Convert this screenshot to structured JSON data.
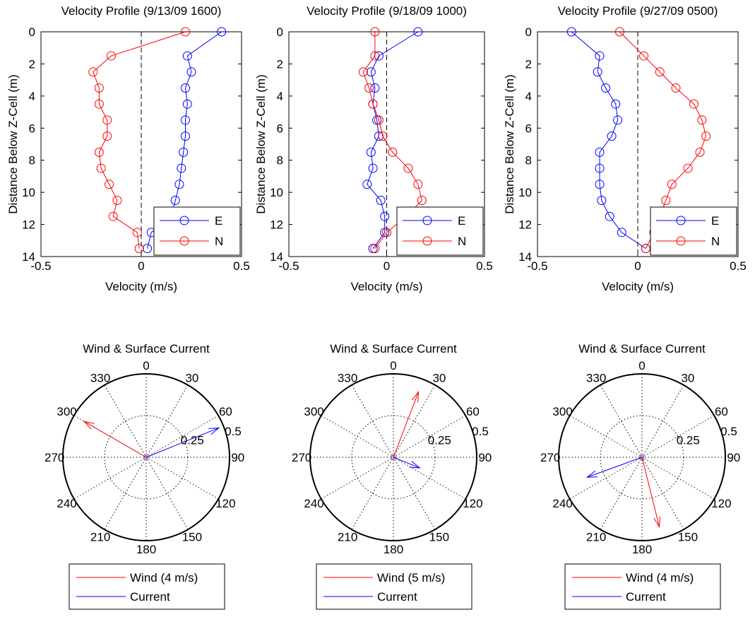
{
  "colors": {
    "east": "#0000ff",
    "north": "#ff0000",
    "wind": "#ff0000",
    "current": "#0000ff",
    "axis": "#000000",
    "zero_line": "#000000"
  },
  "chart_data": [
    {
      "type": "line",
      "title": "Velocity Profile (9/13/09 1600)",
      "xlabel": "Velocity (m/s)",
      "ylabel": "Distance Below Z-Cell (m)",
      "xlim": [
        -0.5,
        0.5
      ],
      "ylim": [
        0,
        14
      ],
      "y_reversed": true,
      "xticks": [
        "-0.5",
        "0",
        "0.5"
      ],
      "yticks": [
        "0",
        "2",
        "4",
        "6",
        "8",
        "10",
        "12",
        "14"
      ],
      "legend": {
        "position": "bottom-right",
        "entries": [
          "E",
          "N"
        ]
      },
      "series": [
        {
          "name": "E",
          "color": "blue",
          "x": [
            0.4,
            0.23,
            0.25,
            0.22,
            0.23,
            0.22,
            0.22,
            0.21,
            0.2,
            0.19,
            0.17,
            0.15,
            0.05,
            0.03
          ],
          "y": [
            0,
            1.5,
            2.5,
            3.5,
            4.5,
            5.5,
            6.5,
            7.5,
            8.5,
            9.5,
            10.5,
            11.5,
            12.5,
            13.5
          ]
        },
        {
          "name": "N",
          "color": "red",
          "x": [
            0.22,
            -0.15,
            -0.24,
            -0.21,
            -0.21,
            -0.17,
            -0.17,
            -0.21,
            -0.2,
            -0.16,
            -0.12,
            -0.14,
            -0.02,
            -0.01
          ],
          "y": [
            0,
            1.5,
            2.5,
            3.5,
            4.5,
            5.5,
            6.5,
            7.5,
            8.5,
            9.5,
            10.5,
            11.5,
            12.5,
            13.5
          ]
        }
      ]
    },
    {
      "type": "line",
      "title": "Velocity Profile (9/18/09 1000)",
      "xlabel": "Velocity (m/s)",
      "ylabel": "Distance Below Z-Cell (m)",
      "xlim": [
        -0.5,
        0.5
      ],
      "ylim": [
        0,
        14
      ],
      "y_reversed": true,
      "xticks": [
        "-0.5",
        "0",
        "0.5"
      ],
      "yticks": [
        "0",
        "2",
        "4",
        "6",
        "8",
        "10",
        "12",
        "14"
      ],
      "legend": {
        "position": "bottom-right",
        "entries": [
          "E",
          "N"
        ]
      },
      "series": [
        {
          "name": "E",
          "color": "blue",
          "x": [
            0.16,
            -0.04,
            -0.08,
            -0.06,
            -0.07,
            -0.05,
            -0.04,
            -0.08,
            -0.07,
            -0.1,
            -0.03,
            -0.01,
            -0.01,
            -0.07
          ],
          "y": [
            0,
            1.5,
            2.5,
            3.5,
            4.5,
            5.5,
            6.5,
            7.5,
            8.5,
            9.5,
            10.5,
            11.5,
            12.5,
            13.5
          ]
        },
        {
          "name": "N",
          "color": "red",
          "x": [
            -0.06,
            -0.06,
            -0.12,
            -0.09,
            -0.07,
            -0.04,
            -0.02,
            0.03,
            0.11,
            0.16,
            0.18,
            0.1,
            0.0,
            -0.06
          ],
          "y": [
            0,
            1.5,
            2.5,
            3.5,
            4.5,
            5.5,
            6.5,
            7.5,
            8.5,
            9.5,
            10.5,
            11.5,
            12.5,
            13.5
          ]
        }
      ]
    },
    {
      "type": "line",
      "title": "Velocity Profile (9/27/09 0500)",
      "xlabel": "Velocity (m/s)",
      "ylabel": "Distance Below Z-Cell (m)",
      "xlim": [
        -0.5,
        0.5
      ],
      "ylim": [
        0,
        14
      ],
      "y_reversed": true,
      "xticks": [
        "-0.5",
        "0",
        "0.5"
      ],
      "yticks": [
        "0",
        "2",
        "4",
        "6",
        "8",
        "10",
        "12",
        "14"
      ],
      "legend": {
        "position": "bottom-right",
        "entries": [
          "E",
          "N"
        ]
      },
      "series": [
        {
          "name": "E",
          "color": "blue",
          "x": [
            -0.33,
            -0.19,
            -0.2,
            -0.16,
            -0.11,
            -0.1,
            -0.13,
            -0.19,
            -0.19,
            -0.19,
            -0.18,
            -0.14,
            -0.08,
            0.04
          ],
          "y": [
            0,
            1.5,
            2.5,
            3.5,
            4.5,
            5.5,
            6.5,
            7.5,
            8.5,
            9.5,
            10.5,
            11.5,
            12.5,
            13.5
          ]
        },
        {
          "name": "N",
          "color": "red",
          "x": [
            -0.09,
            0.03,
            0.11,
            0.19,
            0.28,
            0.32,
            0.34,
            0.31,
            0.25,
            0.17,
            0.14,
            0.11,
            0.08,
            0.04
          ],
          "y": [
            0,
            1.5,
            2.5,
            3.5,
            4.5,
            5.5,
            6.5,
            7.5,
            8.5,
            9.5,
            10.5,
            11.5,
            12.5,
            13.5
          ]
        }
      ]
    },
    {
      "type": "polar",
      "title": "Wind & Surface Current",
      "rlim": [
        0,
        0.5
      ],
      "r_tick_labels": [
        "0.25",
        "0.5"
      ],
      "angle_labels": [
        "0",
        "30",
        "60",
        "90",
        "120",
        "150",
        "180",
        "210",
        "240",
        "270",
        "300",
        "330"
      ],
      "legend": {
        "position": "bottom",
        "entries": [
          "Wind (4 m/s)",
          "Current"
        ]
      },
      "vectors": [
        {
          "name": "Wind (4 m/s)",
          "color": "red",
          "direction_deg": 300,
          "magnitude": 0.43
        },
        {
          "name": "Current",
          "color": "blue",
          "direction_deg": 68,
          "magnitude": 0.47
        }
      ]
    },
    {
      "type": "polar",
      "title": "Wind & Surface Current",
      "rlim": [
        0,
        0.5
      ],
      "r_tick_labels": [
        "0.25",
        "0.5"
      ],
      "angle_labels": [
        "0",
        "30",
        "60",
        "90",
        "120",
        "150",
        "180",
        "210",
        "240",
        "270",
        "300",
        "330"
      ],
      "legend": {
        "position": "bottom",
        "entries": [
          "Wind (5 m/s)",
          "Current"
        ]
      },
      "vectors": [
        {
          "name": "Wind (5 m/s)",
          "color": "red",
          "direction_deg": 21,
          "magnitude": 0.42
        },
        {
          "name": "Current",
          "color": "blue",
          "direction_deg": 112,
          "magnitude": 0.17
        }
      ]
    },
    {
      "type": "polar",
      "title": "Wind & Surface Current",
      "rlim": [
        0,
        0.5
      ],
      "r_tick_labels": [
        "0.25",
        "0.5"
      ],
      "angle_labels": [
        "0",
        "30",
        "60",
        "90",
        "120",
        "150",
        "180",
        "210",
        "240",
        "270",
        "300",
        "330"
      ],
      "legend": {
        "position": "bottom",
        "entries": [
          "Wind (4 m/s)",
          "Current"
        ]
      },
      "vectors": [
        {
          "name": "Wind (4 m/s)",
          "color": "red",
          "direction_deg": 166,
          "magnitude": 0.43
        },
        {
          "name": "Current",
          "color": "blue",
          "direction_deg": 250,
          "magnitude": 0.35
        }
      ]
    }
  ]
}
